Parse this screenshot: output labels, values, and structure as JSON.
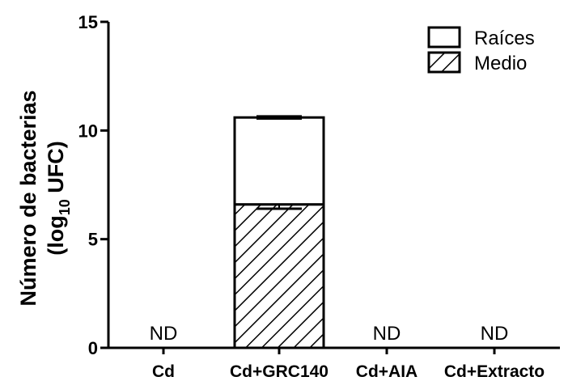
{
  "chart_data": {
    "type": "bar",
    "stacked": true,
    "categories": [
      "Cd",
      "Cd+GRC140",
      "Cd+AIA",
      "Cd+Extracto"
    ],
    "series": [
      {
        "name": "Medio",
        "values": [
          null,
          6.6,
          null,
          null
        ],
        "error": [
          null,
          0.2,
          null,
          null
        ],
        "pattern": "hatched"
      },
      {
        "name": "Raíces",
        "values": [
          null,
          4.0,
          null,
          null
        ],
        "error": [
          null,
          0.05,
          null,
          null
        ],
        "pattern": "open"
      }
    ],
    "annotations": [
      {
        "category": "Cd",
        "text": "ND"
      },
      {
        "category": "Cd+AIA",
        "text": "ND"
      },
      {
        "category": "Cd+Extracto",
        "text": "ND"
      }
    ],
    "ylabel_line1": "Número de bacterias",
    "ylabel_line2_prefix": "(log",
    "ylabel_line2_sub": "10",
    "ylabel_line2_suffix": " UFC)",
    "ylim": [
      0,
      15
    ],
    "yticks": [
      "0",
      "5",
      "10",
      "15"
    ],
    "ytick_values": [
      0,
      5,
      10,
      15
    ],
    "legend_position": "top-right",
    "grid": false
  }
}
